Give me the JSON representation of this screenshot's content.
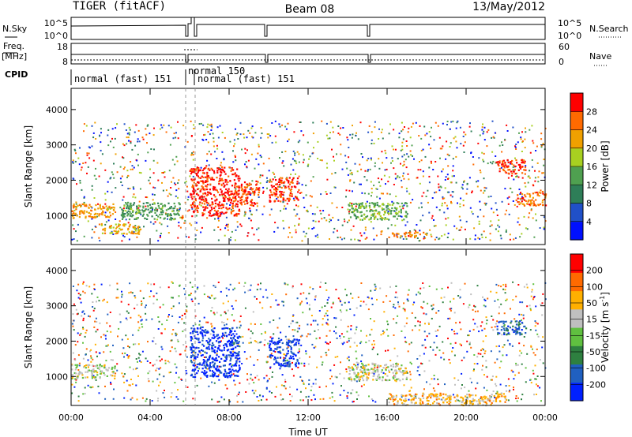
{
  "header": {
    "station": "TIGER (fitACF)",
    "beam": "Beam 08",
    "date": "13/May/2012"
  },
  "top_panels": {
    "nsky_label": "N.Sky",
    "nsky_tick_top": "10^5",
    "nsky_tick_bottom": "10^0",
    "nsearch_label": "N.Search",
    "nsearch_tick_top": "10^5",
    "nsearch_tick_bottom": "10^0",
    "freq_label": "Freq.",
    "freq_unit": "[MHz]",
    "freq_tick_top": "18",
    "freq_tick_bottom": "8",
    "nave_label": "Nave",
    "nave_tick_top": "60",
    "nave_tick_bottom": "0",
    "cpid_label": "CPID",
    "cpid_segments": [
      {
        "label": "normal (fast) 151",
        "start_hour": 0.0
      },
      {
        "label": "normal 150",
        "start_hour": 5.75
      },
      {
        "label": "normal (fast) 151",
        "start_hour": 6.3
      }
    ]
  },
  "chart_data": [
    {
      "type": "heatmap",
      "name": "power",
      "ylabel": "Slant Range [km]",
      "xlabel": "Time UT",
      "xlim": [
        0,
        24
      ],
      "ylim": [
        180,
        4600
      ],
      "x_ticks": [
        "00:00",
        "04:00",
        "08:00",
        "12:00",
        "16:00",
        "20:00",
        "00:00"
      ],
      "y_ticks": [
        1000,
        2000,
        3000,
        4000
      ],
      "colorbar": {
        "label": "Power [dB]",
        "ticks": [
          "4",
          "8",
          "12",
          "16",
          "20",
          "24",
          "28"
        ],
        "range": [
          0,
          30
        ],
        "colors": [
          "#0010ff",
          "#2050c8",
          "#2e7e58",
          "#4fa050",
          "#a8d020",
          "#f0a000",
          "#ff6a00",
          "#ff0000"
        ]
      },
      "echo_regions": [
        {
          "t0": 0.0,
          "t1": 2.2,
          "r0": 950,
          "r1": 1350,
          "value": 22
        },
        {
          "t0": 1.5,
          "t1": 3.5,
          "r0": 500,
          "r1": 800,
          "value": 20
        },
        {
          "t0": 2.5,
          "t1": 5.5,
          "r0": 900,
          "r1": 1400,
          "value": 12
        },
        {
          "t0": 6.0,
          "t1": 8.5,
          "r0": 1000,
          "r1": 2400,
          "value": 28
        },
        {
          "t0": 8.5,
          "t1": 9.5,
          "r0": 1300,
          "r1": 2000,
          "value": 26
        },
        {
          "t0": 10.0,
          "t1": 11.5,
          "r0": 1400,
          "r1": 2100,
          "value": 27
        },
        {
          "t0": 14.0,
          "t1": 17.0,
          "r0": 900,
          "r1": 1400,
          "value": 14
        },
        {
          "t0": 16.0,
          "t1": 18.0,
          "r0": 400,
          "r1": 550,
          "value": 23
        },
        {
          "t0": 21.5,
          "t1": 23.0,
          "r0": 2200,
          "r1": 2600,
          "value": 26
        },
        {
          "t0": 22.5,
          "t1": 24.0,
          "r0": 1300,
          "r1": 1700,
          "value": 24
        }
      ]
    },
    {
      "type": "heatmap",
      "name": "velocity",
      "ylabel": "Slant Range [km]",
      "xlabel": "Time UT",
      "xlim": [
        0,
        24
      ],
      "ylim": [
        180,
        4600
      ],
      "x_ticks": [
        "00:00",
        "04:00",
        "08:00",
        "12:00",
        "16:00",
        "20:00",
        "00:00"
      ],
      "y_ticks": [
        1000,
        2000,
        3000,
        4000
      ],
      "colorbar": {
        "label": "Velocity [m s",
        "label_sup": "-1",
        "label_end": "]",
        "ticks": [
          "200",
          "100",
          "50",
          "15",
          "-15",
          "-50",
          "-100",
          "-200"
        ],
        "range": [
          -250,
          250
        ],
        "colors": [
          "#0020ff",
          "#2060c0",
          "#2e8040",
          "#60c040",
          "#bfbfbf",
          "#ffb000",
          "#ff6a00",
          "#ff0000"
        ]
      },
      "echo_regions": [
        {
          "t0": 0.0,
          "t1": 2.2,
          "r0": 950,
          "r1": 1350,
          "value": -20
        },
        {
          "t0": 6.0,
          "t1": 8.5,
          "r0": 1000,
          "r1": 2400,
          "value": 210
        },
        {
          "t0": 10.0,
          "t1": 11.5,
          "r0": 1300,
          "r1": 2100,
          "value": 200
        },
        {
          "t0": 14.0,
          "t1": 17.0,
          "r0": 900,
          "r1": 1400,
          "value": -30
        },
        {
          "t0": 16.0,
          "t1": 22.0,
          "r0": 200,
          "r1": 550,
          "value": -80
        },
        {
          "t0": 21.5,
          "t1": 23.0,
          "r0": 2200,
          "r1": 2600,
          "value": 150
        }
      ]
    }
  ]
}
